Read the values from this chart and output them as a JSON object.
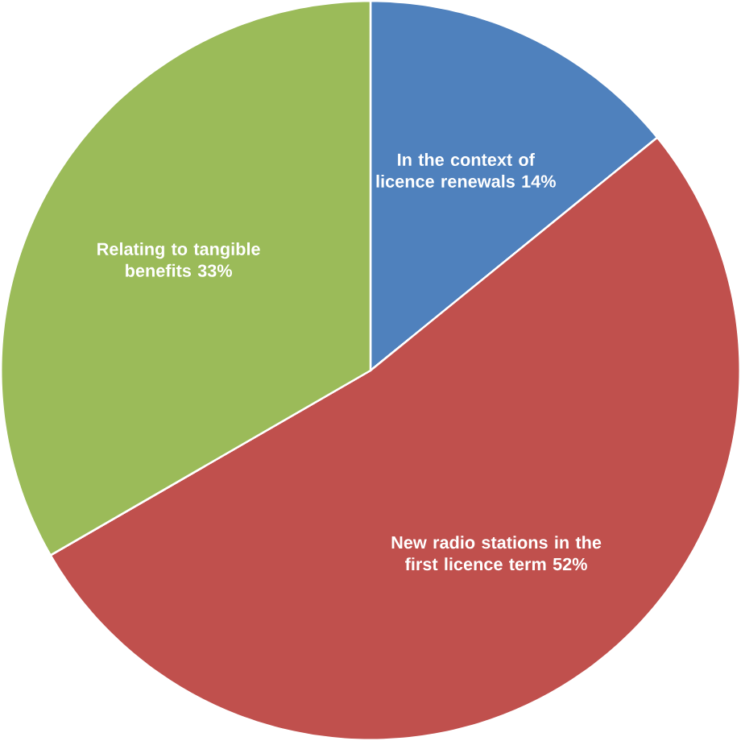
{
  "chart_data": {
    "type": "pie",
    "categories": [
      "In the context of licence renewals",
      "New radio stations in the first licence term",
      "Relating to tangible benefits"
    ],
    "values": [
      14,
      52,
      33
    ],
    "colors": [
      "#4f81bd",
      "#c0504d",
      "#9bbb59"
    ],
    "value_labels": [
      "14%",
      "52%",
      "33%"
    ]
  }
}
